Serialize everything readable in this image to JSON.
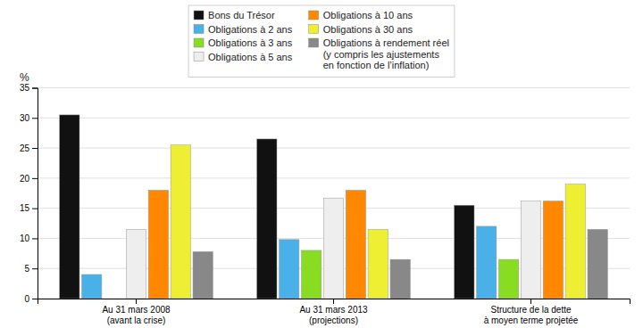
{
  "chart_data": {
    "type": "bar",
    "ylabel": "%",
    "categories": [
      "Au 31 mars 2008\n(avant la crise)",
      "Au 31 mars 2013\n(projections)",
      "Structure de la dette\nà moyen terme projetée"
    ],
    "series": [
      {
        "name": "Bons du Trésor",
        "color": "#111111",
        "values": [
          30.5,
          26.5,
          15.5
        ]
      },
      {
        "name": "Obligations à 2 ans",
        "color": "#4ab0e8",
        "values": [
          4.0,
          9.8,
          12.0
        ]
      },
      {
        "name": "Obligations à 3 ans",
        "color": "#88dd22",
        "values": [
          0.0,
          8.0,
          6.5
        ]
      },
      {
        "name": "Obligations à 5 ans",
        "color": "#eeeeee",
        "values": [
          11.5,
          16.7,
          16.2
        ]
      },
      {
        "name": "Obligations à 10 ans",
        "color": "#ff8800",
        "values": [
          18.0,
          18.0,
          16.2
        ]
      },
      {
        "name": "Obligations à 30 ans",
        "color": "#eeee33",
        "values": [
          25.5,
          11.5,
          19.0
        ]
      },
      {
        "name": "Obligations à rendement réel\n(y compris les ajustements\nen fonction de l’inflation)",
        "color": "#888888",
        "values": [
          7.8,
          6.5,
          11.5
        ]
      }
    ],
    "ylim": [
      0,
      35
    ],
    "yticks": [
      0,
      5,
      10,
      15,
      20,
      25,
      30,
      35
    ],
    "grid": true,
    "legend": "top"
  }
}
